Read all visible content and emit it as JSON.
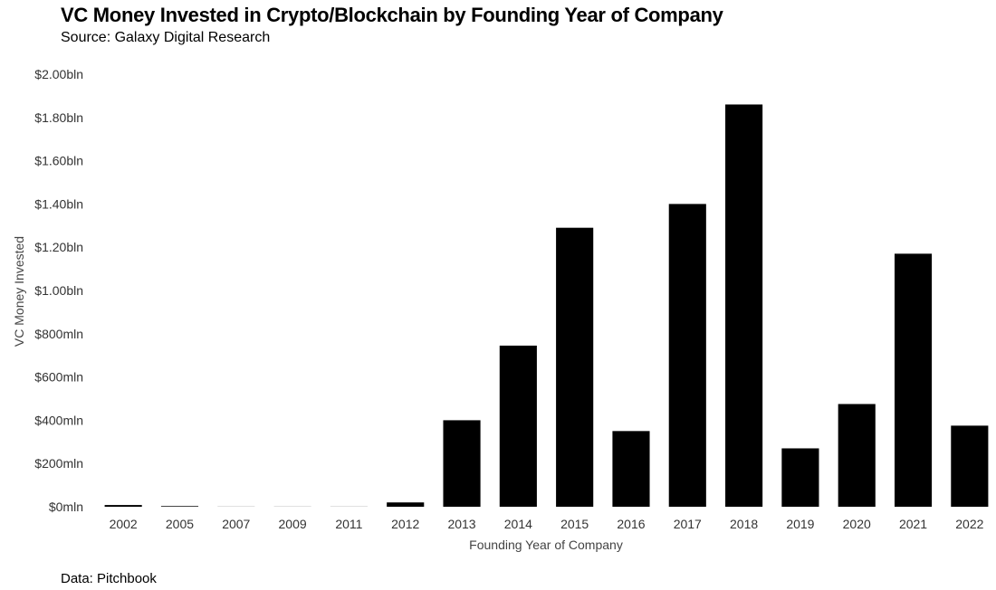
{
  "header": {
    "title": "VC Money Invested in Crypto/Blockchain by Founding Year of Company",
    "subtitle": "Source: Galaxy Digital Research"
  },
  "footer": {
    "note": "Data: Pitchbook"
  },
  "chart_data": {
    "type": "bar",
    "title": "VC Money Invested in Crypto/Blockchain by Founding Year of Company",
    "subtitle": "Source: Galaxy Digital Research",
    "xlabel": "Founding Year of Company",
    "ylabel": "VC Money Invested",
    "y_unit": "USD millions",
    "ylim": [
      0,
      2000
    ],
    "grid": false,
    "legend": "none",
    "bar_color": "#000000",
    "categories": [
      "2002",
      "2005",
      "2007",
      "2009",
      "2011",
      "2012",
      "2013",
      "2014",
      "2015",
      "2016",
      "2017",
      "2018",
      "2019",
      "2020",
      "2021",
      "2022"
    ],
    "values": [
      8,
      3,
      0.5,
      0.5,
      0.5,
      20,
      400,
      745,
      1290,
      350,
      1400,
      1860,
      270,
      475,
      1170,
      375
    ],
    "y_ticks": [
      {
        "value": 0,
        "label": "$0mln"
      },
      {
        "value": 200,
        "label": "$200mln"
      },
      {
        "value": 400,
        "label": "$400mln"
      },
      {
        "value": 600,
        "label": "$600mln"
      },
      {
        "value": 800,
        "label": "$800mln"
      },
      {
        "value": 1000,
        "label": "$1.00bln"
      },
      {
        "value": 1200,
        "label": "$1.20bln"
      },
      {
        "value": 1400,
        "label": "$1.40bln"
      },
      {
        "value": 1600,
        "label": "$1.60bln"
      },
      {
        "value": 1800,
        "label": "$1.80bln"
      },
      {
        "value": 2000,
        "label": "$2.00bln"
      }
    ]
  }
}
